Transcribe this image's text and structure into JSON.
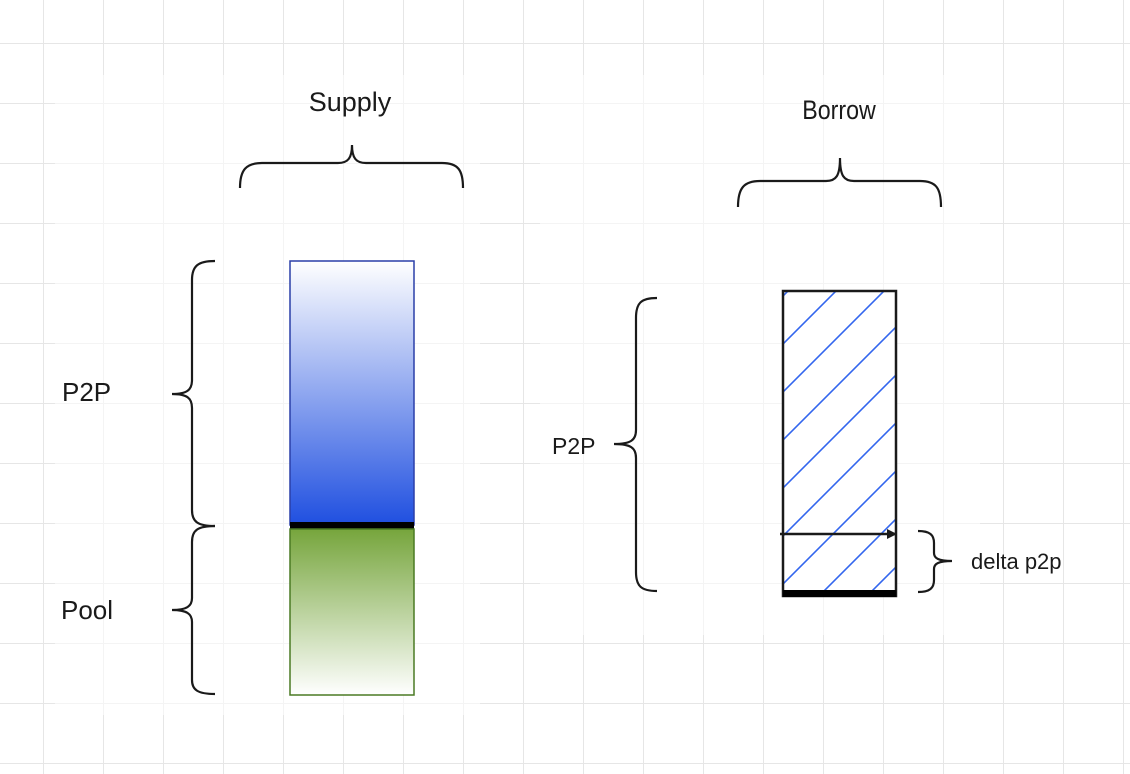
{
  "supply": {
    "title": "Supply",
    "p2p_label": "P2P",
    "pool_label": "Pool"
  },
  "borrow": {
    "title": "Borrow",
    "p2p_label": "P2P",
    "delta_label": "delta p2p"
  },
  "colors": {
    "blue_gradient_top": "#ffffff",
    "blue_gradient_bottom": "#1f4fe0",
    "blue_border": "#2a3fa8",
    "green_gradient_top": "#76a53c",
    "green_gradient_bottom": "#ffffff",
    "green_border": "#4a7a23",
    "hatch_stroke": "#3366ee",
    "line": "#1a1a1a"
  }
}
